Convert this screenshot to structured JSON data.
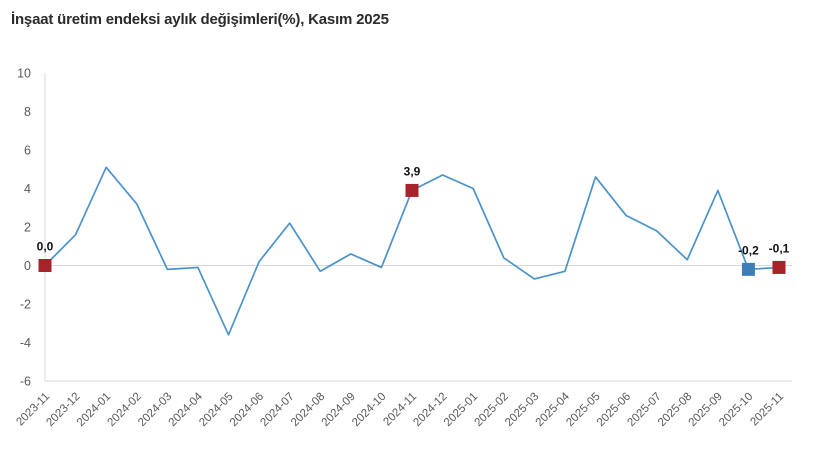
{
  "chart_data": {
    "type": "line",
    "title": "İnşaat üretim endeksi aylık değişimleri(%), Kasım 2025",
    "x": [
      "2023-11",
      "2023-12",
      "2024-01",
      "2024-02",
      "2024-03",
      "2024-04",
      "2024-05",
      "2024-06",
      "2024-07",
      "2024-08",
      "2024-09",
      "2024-10",
      "2024-11",
      "2024-12",
      "2025-01",
      "2025-02",
      "2025-03",
      "2025-04",
      "2025-05",
      "2025-06",
      "2025-07",
      "2025-08",
      "2025-09",
      "2025-10",
      "2025-11"
    ],
    "values": [
      0.0,
      1.6,
      5.1,
      3.2,
      -0.2,
      -0.1,
      -3.6,
      0.2,
      2.2,
      -0.3,
      0.6,
      -0.1,
      3.9,
      4.7,
      4.0,
      0.4,
      -0.7,
      -0.3,
      4.6,
      2.6,
      1.8,
      0.3,
      3.9,
      -0.2,
      -0.1
    ],
    "xlabel": "",
    "ylabel": "",
    "ylim": [
      -6,
      10
    ],
    "yticks": [
      10,
      8,
      6,
      4,
      2,
      0,
      -2,
      -4,
      -6
    ],
    "grid": "zero-line-only",
    "legend_position": "none",
    "annotated_points": [
      {
        "index": 0,
        "label": "0,0",
        "marker": "square",
        "color": "red"
      },
      {
        "index": 12,
        "label": "3,9",
        "marker": "square",
        "color": "red"
      },
      {
        "index": 23,
        "label": "-0,2",
        "marker": "square",
        "color": "blue"
      },
      {
        "index": 24,
        "label": "-0,1",
        "marker": "square",
        "color": "red"
      }
    ],
    "colors": {
      "line": "#4b92cb",
      "marker_red": "#a62329",
      "marker_blue": "#3d7eb8",
      "axis": "#d8d8d8",
      "tick_text": "#595959",
      "label_text": "#111111",
      "title_text": "#2b2b2b"
    }
  }
}
